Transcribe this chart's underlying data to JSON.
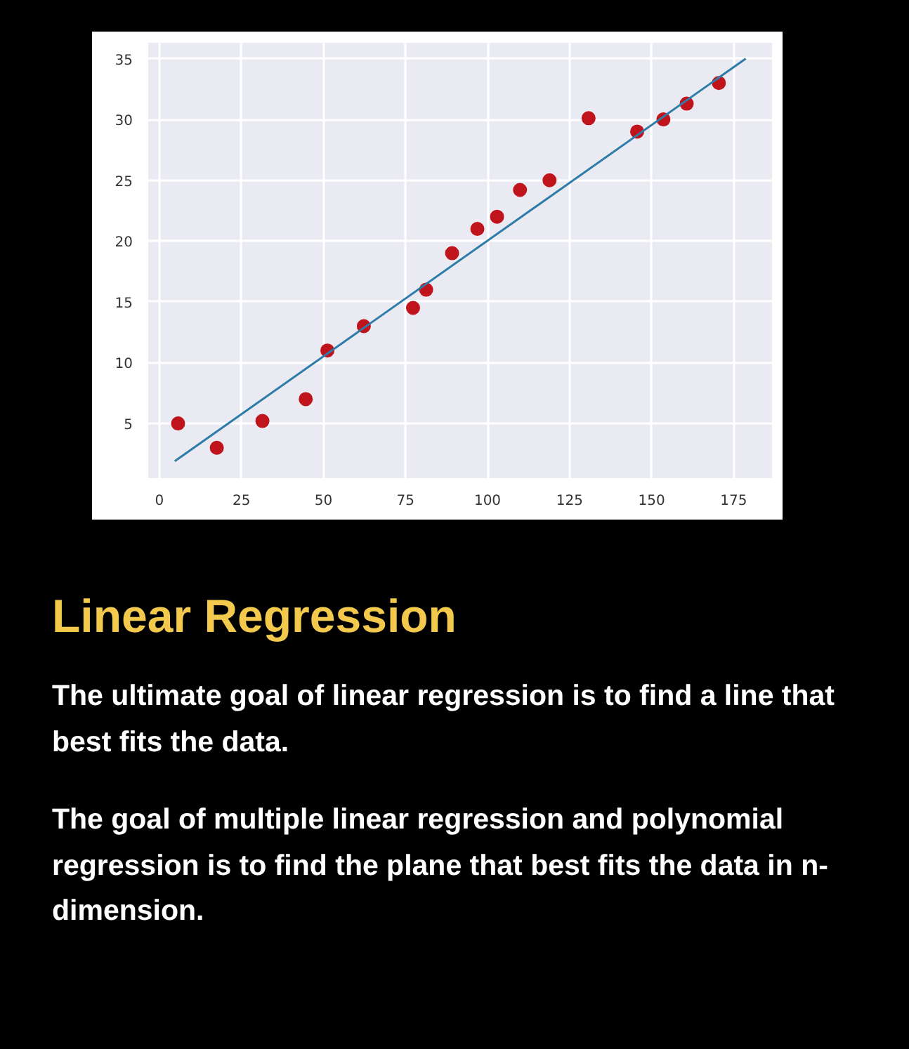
{
  "chart_data": {
    "type": "scatter",
    "title": "Linear Regression",
    "annotations": [
      "The ultimate goal of linear regression is to find a line that best fits the data.",
      "The goal of multiple linear regression and polynomial regression is to find the plane that best fits the data in n-dimension."
    ],
    "xlim": [
      -3.4,
      186.7
    ],
    "ylim": [
      0.5,
      36.3
    ],
    "xticks": [
      0,
      25,
      50,
      75,
      100,
      125,
      150,
      175
    ],
    "yticks": [
      5,
      10,
      15,
      20,
      25,
      30,
      35
    ],
    "grid": true,
    "series": [
      {
        "marker": "circle",
        "color": "#c0141c",
        "x": [
          5.7,
          17.5,
          31.4,
          44.6,
          51.2,
          62.3,
          77.3,
          81.3,
          89.2,
          96.9,
          102.9,
          109.9,
          118.9,
          130.8,
          145.6,
          153.6,
          160.7,
          170.5
        ],
        "values": [
          5,
          3.0,
          5.2,
          7.0,
          11.0,
          13.0,
          14.5,
          16.0,
          19.0,
          21.0,
          22.0,
          24.2,
          25.0,
          30.1,
          29.0,
          30.0,
          31.3,
          33.0
        ]
      },
      {
        "type": "line",
        "marker": "none",
        "color": "#2e7ca8",
        "x": [
          4.7,
          178.7
        ],
        "values": [
          1.9,
          35.0
        ]
      }
    ]
  }
}
